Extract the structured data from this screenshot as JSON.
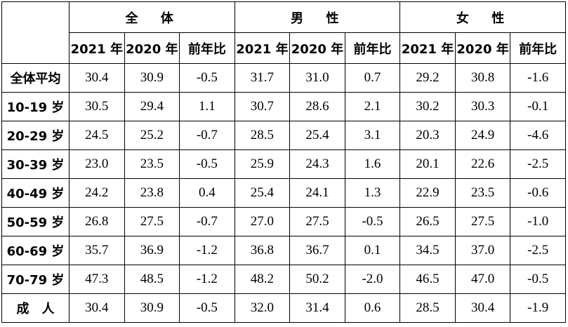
{
  "table": {
    "groups": [
      "全　体",
      "男　性",
      "女　性"
    ],
    "columns": [
      "2021 年",
      "2020 年",
      "前年比",
      "2021 年",
      "2020 年",
      "前年比",
      "2021 年",
      "2020 年",
      "前年比"
    ],
    "rows": [
      {
        "label": "全体平均",
        "values": [
          "30.4",
          "30.9",
          "-0.5",
          "31.7",
          "31.0",
          "0.7",
          "29.2",
          "30.8",
          "-1.6"
        ]
      },
      {
        "label": "10-19 岁",
        "values": [
          "30.5",
          "29.4",
          "1.1",
          "30.7",
          "28.6",
          "2.1",
          "30.2",
          "30.3",
          "-0.1"
        ]
      },
      {
        "label": "20-29 岁",
        "values": [
          "24.5",
          "25.2",
          "-0.7",
          "28.5",
          "25.4",
          "3.1",
          "20.3",
          "24.9",
          "-4.6"
        ]
      },
      {
        "label": "30-39 岁",
        "values": [
          "23.0",
          "23.5",
          "-0.5",
          "25.9",
          "24.3",
          "1.6",
          "20.1",
          "22.6",
          "-2.5"
        ]
      },
      {
        "label": "40-49 岁",
        "values": [
          "24.2",
          "23.8",
          "0.4",
          "25.4",
          "24.1",
          "1.3",
          "22.9",
          "23.5",
          "-0.6"
        ]
      },
      {
        "label": "50-59 岁",
        "values": [
          "26.8",
          "27.5",
          "-0.7",
          "27.0",
          "27.5",
          "-0.5",
          "26.5",
          "27.5",
          "-1.0"
        ]
      },
      {
        "label": "60-69 岁",
        "values": [
          "35.7",
          "36.9",
          "-1.2",
          "36.8",
          "36.7",
          "0.1",
          "34.5",
          "37.0",
          "-2.5"
        ]
      },
      {
        "label": "70-79 岁",
        "values": [
          "47.3",
          "48.5",
          "-1.2",
          "48.2",
          "50.2",
          "-2.0",
          "46.5",
          "47.0",
          "-0.5"
        ]
      },
      {
        "label": "成　人",
        "values": [
          "30.4",
          "30.9",
          "-0.5",
          "32.0",
          "31.4",
          "0.6",
          "28.5",
          "30.4",
          "-1.9"
        ]
      }
    ]
  }
}
